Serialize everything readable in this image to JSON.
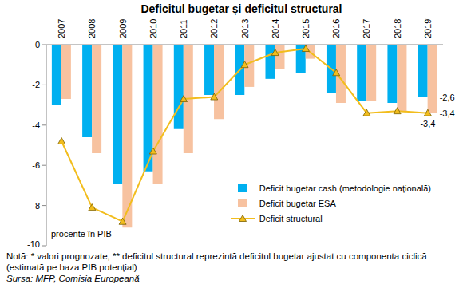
{
  "chart_data": {
    "type": "bar",
    "title": "Deficitul bugetar și deficitul structural",
    "y_label": "procente în PIB",
    "categories": [
      "2007",
      "2008",
      "2009",
      "2010",
      "2011",
      "2012",
      "2013",
      "2014",
      "2015",
      "2016",
      "2017",
      "2018*",
      "2019*"
    ],
    "series": [
      {
        "name": "Deficit bugetar cash (metodologie națională)",
        "type": "bar",
        "color": "#00b0f0",
        "values": [
          -3.0,
          -4.6,
          -6.9,
          -6.3,
          -4.2,
          -2.5,
          -2.5,
          -1.7,
          -1.4,
          -2.4,
          -2.8,
          -2.9,
          -2.6
        ],
        "value_labels": [
          null,
          null,
          null,
          null,
          null,
          null,
          null,
          null,
          null,
          null,
          null,
          null,
          "-2,6"
        ]
      },
      {
        "name": "Deficit bugetar ESA",
        "type": "bar",
        "color": "#f7c2a0",
        "values": [
          -2.7,
          -5.4,
          -9.1,
          -6.9,
          -5.4,
          -3.7,
          -2.1,
          -1.2,
          -0.7,
          -2.9,
          -2.8,
          -3.3,
          -3.4
        ],
        "value_labels": [
          null,
          null,
          null,
          null,
          null,
          null,
          null,
          null,
          null,
          null,
          null,
          null,
          "-3,4"
        ]
      },
      {
        "name": "Deficit structural",
        "type": "line",
        "color": "#f2bd1d",
        "marker": "triangle",
        "line_style": "solid",
        "values": [
          -4.8,
          -8.1,
          -8.8,
          -5.3,
          -2.7,
          -2.6,
          -1.0,
          -0.4,
          -0.2,
          -1.4,
          -3.4,
          -3.3,
          -3.4
        ],
        "value_labels": [
          null,
          null,
          null,
          null,
          null,
          null,
          null,
          null,
          null,
          null,
          null,
          null,
          "-3,4"
        ]
      }
    ],
    "ylim": [
      -10,
      0
    ],
    "yticks": [
      0,
      -2,
      -4,
      -6,
      -8,
      -10
    ],
    "grid": false,
    "legend": "lower right",
    "note": "Notă: * valori prognozate, ** deficitul structural reprezintă deficitul bugetar ajustat cu componenta ciclică (estimată pe baza PIB potențial)",
    "source": "Sursa: MFP, Comisia Europeană"
  }
}
